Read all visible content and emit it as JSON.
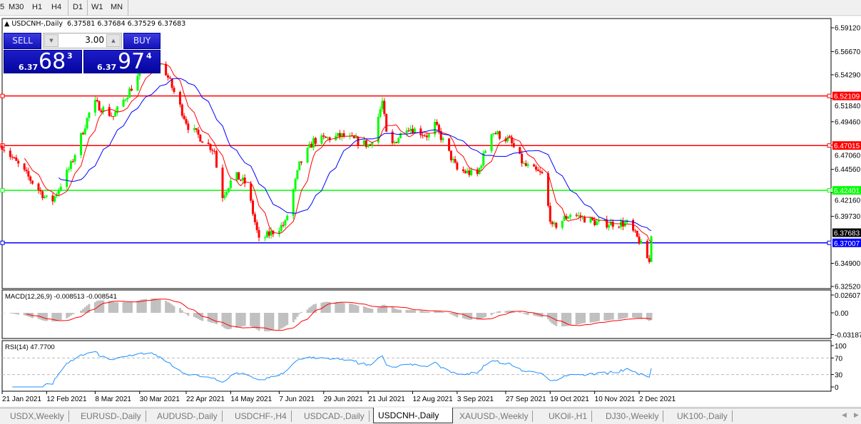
{
  "toolbar": {
    "timeframes": [
      "5",
      "M30",
      "H1",
      "H4",
      "D1",
      "W1",
      "MN"
    ],
    "active": "D1"
  },
  "chart": {
    "title": "USDCNH-,Daily",
    "ohlc": "6.37581 6.37684 6.37529 6.37683"
  },
  "trade_panel": {
    "sell_label": "SELL",
    "buy_label": "BUY",
    "lot": "3.00",
    "sell_prefix": "6.37",
    "sell_big": "68",
    "sell_sup": "3",
    "buy_prefix": "6.37",
    "buy_big": "97",
    "buy_sup": "4"
  },
  "macd": {
    "label": "MACD(12,26,9) -0.008513 -0.008541",
    "ticks": [
      "0.02607",
      "0.00",
      "-0.031872"
    ]
  },
  "rsi": {
    "label": "RSI(14) 47.7700",
    "ticks": [
      "100",
      "70",
      "30",
      "0"
    ]
  },
  "tabs": [
    "USDX,Weekly",
    "EURUSD-,Daily",
    "AUDUSD-,Daily",
    "USDCHF-,H4",
    "USDCAD-,Daily",
    "USDCNH-,Daily",
    "XAUUSD-,Weekly",
    "UKOil-,H1",
    "DJ30-,Weekly",
    "UK100-,Daily"
  ],
  "active_tab": "USDCNH-,Daily",
  "colors": {
    "bull": "#00ff00",
    "bear": "#ff0000",
    "ma_fast": "#ff0000",
    "ma_slow": "#0000ff",
    "macd_hist": "#c0c0c0",
    "macd_signal": "#ff0000",
    "rsi": "#1e90ff"
  },
  "chart_data": {
    "type": "candlestick",
    "price_ticks": [
      "6.59120",
      "6.56670",
      "6.54290",
      "6.51840",
      "6.49460",
      "6.47060",
      "6.44560",
      "6.42160",
      "6.39730",
      "6.34900",
      "6.32520"
    ],
    "ylim": [
      6.3252,
      6.5912
    ],
    "time_ticks": [
      "21 Jan 2021",
      "12 Feb 2021",
      "8 Mar 2021",
      "30 Mar 2021",
      "22 Apr 2021",
      "14 May 2021",
      "7 Jun 2021",
      "29 Jun 2021",
      "21 Jul 2021",
      "12 Aug 2021",
      "3 Sep 2021",
      "27 Sep 2021",
      "19 Oct 2021",
      "10 Nov 2021",
      "2 Dec 2021"
    ],
    "levels": [
      {
        "price": "6.52109",
        "color": "#ff0000"
      },
      {
        "price": "6.47015",
        "color": "#ff0000"
      },
      {
        "price": "6.42401",
        "color": "#00ff00"
      },
      {
        "price": "6.37007",
        "color": "#0000ff"
      }
    ],
    "bid": "6.37683",
    "approx_closes": [
      [
        "2021-01-21",
        6.47
      ],
      [
        "2021-02-14",
        6.41
      ],
      [
        "2021-02-24",
        6.45
      ],
      [
        "2021-03-07",
        6.515
      ],
      [
        "2021-03-17",
        6.5
      ],
      [
        "2021-04-04",
        6.56
      ],
      [
        "2021-04-11",
        6.55
      ],
      [
        "2021-04-23",
        6.49
      ],
      [
        "2021-05-06",
        6.465
      ],
      [
        "2021-05-09",
        6.415
      ],
      [
        "2021-05-16",
        6.44
      ],
      [
        "2021-05-22",
        6.43
      ],
      [
        "2021-05-28",
        6.372
      ],
      [
        "2021-06-10",
        6.39
      ],
      [
        "2021-06-17",
        6.45
      ],
      [
        "2021-06-24",
        6.475
      ],
      [
        "2021-07-08",
        6.48
      ],
      [
        "2021-07-22",
        6.47
      ],
      [
        "2021-07-28",
        6.515
      ],
      [
        "2021-07-31",
        6.465
      ],
      [
        "2021-08-09",
        6.49
      ],
      [
        "2021-08-20",
        6.48
      ],
      [
        "2021-08-21",
        6.5
      ],
      [
        "2021-09-03",
        6.445
      ],
      [
        "2021-09-13",
        6.44
      ],
      [
        "2021-09-20",
        6.485
      ],
      [
        "2021-09-29",
        6.475
      ],
      [
        "2021-10-06",
        6.45
      ],
      [
        "2021-10-15",
        6.44
      ],
      [
        "2021-10-20",
        6.385
      ],
      [
        "2021-10-29",
        6.4
      ],
      [
        "2021-11-12",
        6.39
      ],
      [
        "2021-11-26",
        6.39
      ],
      [
        "2021-12-02",
        6.372
      ],
      [
        "2021-12-07",
        6.35
      ],
      [
        "2021-12-08",
        6.37683
      ]
    ]
  }
}
